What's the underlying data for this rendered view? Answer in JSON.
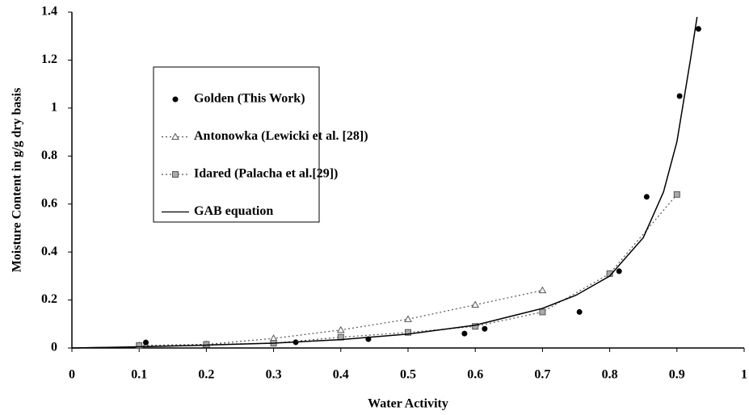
{
  "chart_data": {
    "type": "scatter-line",
    "x_label": "Water Activity",
    "y_label": "Moisture Content in g/g dry basis",
    "xlim": [
      0,
      1
    ],
    "ylim": [
      0,
      1.4
    ],
    "xticks": [
      0,
      0.1,
      0.2,
      0.3,
      0.4,
      0.5,
      0.6,
      0.7,
      0.8,
      0.9,
      1
    ],
    "yticks": [
      0,
      0.2,
      0.4,
      0.6,
      0.8,
      1,
      1.2,
      1.4
    ],
    "grid": false,
    "legend": "upper-left",
    "series": [
      {
        "name": "Golden (This Work)",
        "color": "#000000",
        "marker": "circle",
        "line": "none",
        "x": [
          0.11,
          0.333,
          0.441,
          0.584,
          0.614,
          0.755,
          0.814,
          0.855,
          0.904,
          0.932
        ],
        "values": [
          0.023,
          0.024,
          0.037,
          0.06,
          0.08,
          0.15,
          0.32,
          0.63,
          1.05,
          1.33
        ]
      },
      {
        "name": "Antonowka (Lewicki et al. [28])",
        "color": "#555555",
        "marker": "triangle",
        "line": "dotted",
        "x": [
          0.1,
          0.2,
          0.3,
          0.4,
          0.5,
          0.6,
          0.7
        ],
        "values": [
          0.01,
          0.015,
          0.04,
          0.075,
          0.12,
          0.18,
          0.24
        ]
      },
      {
        "name": "Idared (Palacha et al.[29])",
        "color": "#555555",
        "marker": "square",
        "line": "dotted",
        "x": [
          0.1,
          0.2,
          0.3,
          0.4,
          0.5,
          0.6,
          0.7,
          0.8,
          0.9
        ],
        "values": [
          0.01,
          0.015,
          0.02,
          0.045,
          0.065,
          0.09,
          0.15,
          0.31,
          0.64
        ]
      },
      {
        "name": "GAB equation",
        "color": "#000000",
        "marker": "none",
        "line": "solid",
        "x": [
          0,
          0.1,
          0.2,
          0.3,
          0.4,
          0.5,
          0.6,
          0.7,
          0.75,
          0.8,
          0.85,
          0.88,
          0.9,
          0.92,
          0.93
        ],
        "values": [
          0,
          0.005,
          0.012,
          0.02,
          0.035,
          0.058,
          0.095,
          0.165,
          0.22,
          0.3,
          0.46,
          0.65,
          0.86,
          1.2,
          1.38
        ]
      }
    ]
  }
}
